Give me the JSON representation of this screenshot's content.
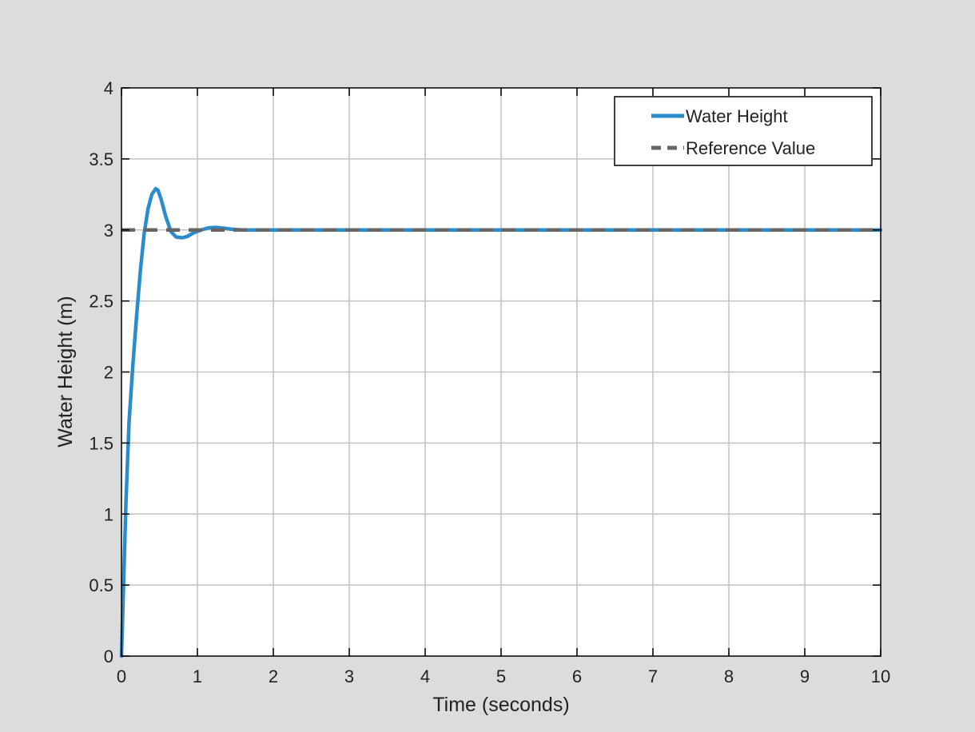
{
  "chart_data": {
    "type": "line",
    "xlabel": "Time (seconds)",
    "ylabel": "Water Height (m)",
    "xlim": [
      0,
      10
    ],
    "ylim": [
      0,
      4
    ],
    "xticks": [
      "0",
      "1",
      "2",
      "3",
      "4",
      "5",
      "6",
      "7",
      "8",
      "9",
      "10"
    ],
    "yticks": [
      "0",
      "0.5",
      "1",
      "1.5",
      "2",
      "2.5",
      "3",
      "3.5",
      "4"
    ],
    "grid": true,
    "legend_position": "top-right",
    "series": [
      {
        "name": "Water Height",
        "color": "#2b8ccc",
        "style": "solid",
        "x": [
          0,
          0.03,
          0.06,
          0.1,
          0.15,
          0.2,
          0.25,
          0.3,
          0.35,
          0.4,
          0.45,
          0.48,
          0.52,
          0.58,
          0.65,
          0.72,
          0.8,
          0.87,
          0.95,
          1.05,
          1.15,
          1.25,
          1.35,
          1.45,
          1.6,
          1.8,
          2.0,
          3.0,
          4.0,
          5.0,
          6.0,
          7.0,
          8.0,
          9.0,
          10.0
        ],
        "y": [
          0,
          0.55,
          1.1,
          1.65,
          2.05,
          2.4,
          2.72,
          2.98,
          3.15,
          3.25,
          3.29,
          3.28,
          3.22,
          3.1,
          2.99,
          2.95,
          2.945,
          2.955,
          2.98,
          3.0,
          3.015,
          3.018,
          3.012,
          3.005,
          2.999,
          3.0,
          3.0,
          3.0,
          3.0,
          3.0,
          3.0,
          3.0,
          3.0,
          3.0,
          3.0
        ]
      },
      {
        "name": "Reference Value",
        "color": "#666666",
        "style": "dashed",
        "x": [
          0,
          10
        ],
        "y": [
          3,
          3
        ]
      }
    ]
  }
}
